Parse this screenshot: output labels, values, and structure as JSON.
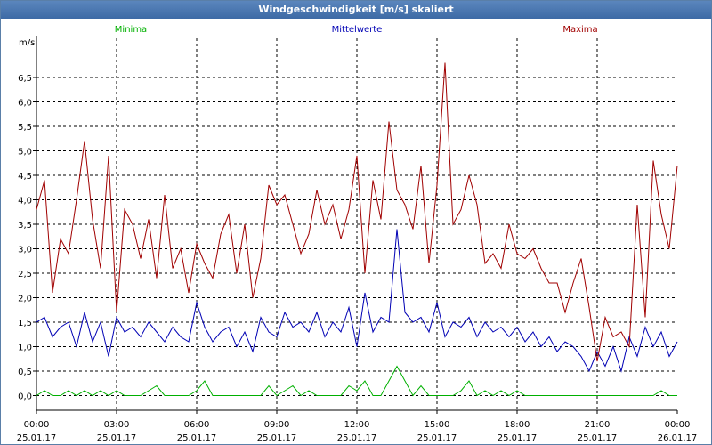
{
  "window": {
    "title": "Windgeschwindigkeit [m/s] skaliert"
  },
  "chart_data": {
    "type": "line",
    "title": "Windgeschwindigkeit [m/s] skaliert",
    "ylabel": "m/s",
    "xlabel": "",
    "ylim": [
      -0.3,
      7.3
    ],
    "grid": true,
    "yticks": [
      0.0,
      0.5,
      1.0,
      1.5,
      2.0,
      2.5,
      3.0,
      3.5,
      4.0,
      4.5,
      5.0,
      5.5,
      6.0,
      6.5
    ],
    "ytick_labels": [
      "0,0",
      "0,5",
      "1,0",
      "1,5",
      "2,0",
      "2,5",
      "3,0",
      "3,5",
      "4,0",
      "4,5",
      "5,0",
      "5,5",
      "6,0",
      "6,5"
    ],
    "xlim": [
      0,
      24
    ],
    "xticks": [
      {
        "hour": 0,
        "time": "00:00",
        "date": "25.01.17"
      },
      {
        "hour": 3,
        "time": "03:00",
        "date": "25.01.17"
      },
      {
        "hour": 6,
        "time": "06:00",
        "date": "25.01.17"
      },
      {
        "hour": 9,
        "time": "09:00",
        "date": "25.01.17"
      },
      {
        "hour": 12,
        "time": "12:00",
        "date": "25.01.17"
      },
      {
        "hour": 15,
        "time": "15:00",
        "date": "25.01.17"
      },
      {
        "hour": 18,
        "time": "18:00",
        "date": "25.01.17"
      },
      {
        "hour": 21,
        "time": "21:00",
        "date": "25.01.17"
      },
      {
        "hour": 24,
        "time": "00:00",
        "date": "26.01.17"
      }
    ],
    "series": [
      {
        "name": "Minima",
        "color": "#00b000",
        "x": [
          0,
          0.3,
          0.6,
          0.9,
          1.2,
          1.5,
          1.8,
          2.1,
          2.4,
          2.7,
          3.0,
          3.3,
          3.6,
          3.9,
          4.2,
          4.5,
          4.8,
          5.1,
          5.4,
          5.7,
          6.0,
          6.3,
          6.6,
          6.9,
          7.2,
          7.5,
          7.8,
          8.1,
          8.4,
          8.7,
          9.0,
          9.3,
          9.6,
          9.9,
          10.2,
          10.5,
          10.8,
          11.1,
          11.4,
          11.7,
          12.0,
          12.3,
          12.6,
          12.9,
          13.2,
          13.5,
          13.8,
          14.1,
          14.4,
          14.7,
          15.0,
          15.3,
          15.6,
          15.9,
          16.2,
          16.5,
          16.8,
          17.1,
          17.4,
          17.7,
          18.0,
          18.3,
          18.6,
          18.9,
          19.2,
          19.5,
          19.8,
          20.1,
          20.4,
          20.7,
          21.0,
          21.3,
          21.6,
          21.9,
          22.2,
          22.5,
          22.8,
          23.1,
          23.4,
          23.7,
          24.0
        ],
        "values": [
          0.0,
          0.1,
          0.0,
          0.0,
          0.1,
          0.0,
          0.1,
          0.0,
          0.1,
          0.0,
          0.1,
          0.0,
          0.0,
          0.0,
          0.1,
          0.2,
          0.0,
          0.0,
          0.0,
          0.0,
          0.1,
          0.3,
          0.0,
          0.0,
          0.0,
          0.0,
          0.0,
          0.0,
          0.0,
          0.2,
          0.0,
          0.1,
          0.2,
          0.0,
          0.1,
          0.0,
          0.0,
          0.0,
          0.0,
          0.2,
          0.1,
          0.3,
          0.0,
          0.0,
          0.3,
          0.6,
          0.3,
          0.0,
          0.2,
          0.0,
          0.0,
          0.0,
          0.0,
          0.1,
          0.3,
          0.0,
          0.1,
          0.0,
          0.1,
          0.0,
          0.1,
          0.0,
          0.0,
          0.0,
          0.0,
          0.0,
          0.0,
          0.0,
          0.0,
          0.0,
          0.0,
          0.0,
          0.0,
          0.0,
          0.0,
          0.0,
          0.0,
          0.0,
          0.1,
          0.0,
          0.0
        ]
      },
      {
        "name": "Mittelwerte",
        "color": "#0000b4",
        "x": [
          0,
          0.3,
          0.6,
          0.9,
          1.2,
          1.5,
          1.8,
          2.1,
          2.4,
          2.7,
          3.0,
          3.3,
          3.6,
          3.9,
          4.2,
          4.5,
          4.8,
          5.1,
          5.4,
          5.7,
          6.0,
          6.3,
          6.6,
          6.9,
          7.2,
          7.5,
          7.8,
          8.1,
          8.4,
          8.7,
          9.0,
          9.3,
          9.6,
          9.9,
          10.2,
          10.5,
          10.8,
          11.1,
          11.4,
          11.7,
          12.0,
          12.3,
          12.6,
          12.9,
          13.2,
          13.5,
          13.8,
          14.1,
          14.4,
          14.7,
          15.0,
          15.3,
          15.6,
          15.9,
          16.2,
          16.5,
          16.8,
          17.1,
          17.4,
          17.7,
          18.0,
          18.3,
          18.6,
          18.9,
          19.2,
          19.5,
          19.8,
          20.1,
          20.4,
          20.7,
          21.0,
          21.3,
          21.6,
          21.9,
          22.2,
          22.5,
          22.8,
          23.1,
          23.4,
          23.7,
          24.0
        ],
        "values": [
          1.5,
          1.6,
          1.2,
          1.4,
          1.5,
          1.0,
          1.7,
          1.1,
          1.5,
          0.8,
          1.6,
          1.3,
          1.4,
          1.2,
          1.5,
          1.3,
          1.1,
          1.4,
          1.2,
          1.1,
          1.9,
          1.4,
          1.1,
          1.3,
          1.4,
          1.0,
          1.3,
          0.9,
          1.6,
          1.3,
          1.2,
          1.7,
          1.4,
          1.5,
          1.3,
          1.7,
          1.2,
          1.5,
          1.3,
          1.8,
          1.0,
          2.1,
          1.3,
          1.6,
          1.5,
          3.4,
          1.7,
          1.5,
          1.6,
          1.3,
          1.9,
          1.2,
          1.5,
          1.4,
          1.6,
          1.2,
          1.5,
          1.3,
          1.4,
          1.2,
          1.4,
          1.1,
          1.3,
          1.0,
          1.2,
          0.9,
          1.1,
          1.0,
          0.8,
          0.5,
          0.9,
          0.6,
          1.0,
          0.5,
          1.2,
          0.8,
          1.4,
          1.0,
          1.3,
          0.8,
          1.1
        ]
      },
      {
        "name": "Maxima",
        "color": "#a00000",
        "x": [
          0,
          0.3,
          0.6,
          0.9,
          1.2,
          1.5,
          1.8,
          2.1,
          2.4,
          2.7,
          3.0,
          3.3,
          3.6,
          3.9,
          4.2,
          4.5,
          4.8,
          5.1,
          5.4,
          5.7,
          6.0,
          6.3,
          6.6,
          6.9,
          7.2,
          7.5,
          7.8,
          8.1,
          8.4,
          8.7,
          9.0,
          9.3,
          9.6,
          9.9,
          10.2,
          10.5,
          10.8,
          11.1,
          11.4,
          11.7,
          12.0,
          12.3,
          12.6,
          12.9,
          13.2,
          13.5,
          13.8,
          14.1,
          14.4,
          14.7,
          15.0,
          15.3,
          15.6,
          15.9,
          16.2,
          16.5,
          16.8,
          17.1,
          17.4,
          17.7,
          18.0,
          18.3,
          18.6,
          18.9,
          19.2,
          19.5,
          19.8,
          20.1,
          20.4,
          20.7,
          21.0,
          21.3,
          21.6,
          21.9,
          22.2,
          22.5,
          22.8,
          23.1,
          23.4,
          23.7,
          24.0
        ],
        "values": [
          3.8,
          4.4,
          2.1,
          3.2,
          2.9,
          4.0,
          5.2,
          3.6,
          2.6,
          4.9,
          1.7,
          3.8,
          3.5,
          2.8,
          3.6,
          2.4,
          4.1,
          2.6,
          3.0,
          2.1,
          3.1,
          2.7,
          2.4,
          3.3,
          3.7,
          2.5,
          3.5,
          2.0,
          2.8,
          4.3,
          3.9,
          4.1,
          3.5,
          2.9,
          3.3,
          4.2,
          3.5,
          3.9,
          3.2,
          3.8,
          4.9,
          2.5,
          4.4,
          3.6,
          5.6,
          4.2,
          3.9,
          3.4,
          4.7,
          2.7,
          4.3,
          6.8,
          3.5,
          3.8,
          4.5,
          3.9,
          2.7,
          2.9,
          2.6,
          3.5,
          2.9,
          2.8,
          3.0,
          2.6,
          2.3,
          2.3,
          1.7,
          2.3,
          2.8,
          1.8,
          0.7,
          1.6,
          1.2,
          1.3,
          1.0,
          3.9,
          1.6,
          4.8,
          3.7,
          3.0,
          4.7
        ]
      }
    ]
  }
}
